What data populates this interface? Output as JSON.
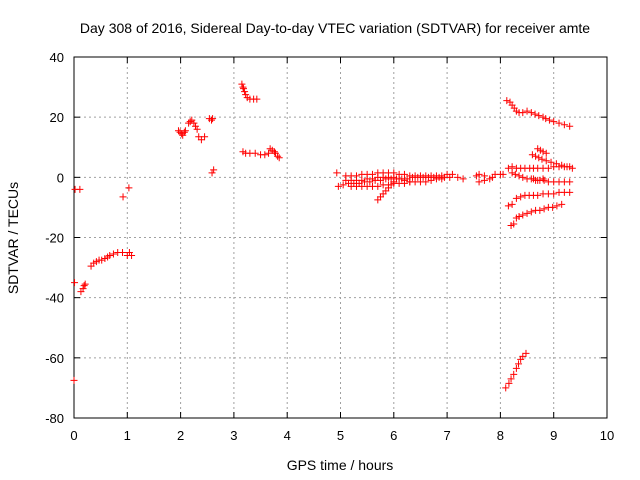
{
  "chart_data": {
    "type": "scatter",
    "title": "Day 308 of 2016, Sidereal Day-to-day VTEC variation (SDTVAR) for receiver amte",
    "xlabel": "GPS time / hours",
    "ylabel": "SDTVAR / TECUs",
    "xlim": [
      0,
      10
    ],
    "ylim": [
      -80,
      40
    ],
    "xticks": [
      0,
      1,
      2,
      3,
      4,
      5,
      6,
      7,
      8,
      9,
      10
    ],
    "yticks": [
      -80,
      -60,
      -40,
      -20,
      0,
      20,
      40
    ],
    "xtick_labels": [
      "0",
      "1",
      "2",
      "3",
      "4",
      "5",
      "6",
      "7",
      "8",
      "9",
      "10"
    ],
    "ytick_labels": [
      "-80",
      "-60",
      "-40",
      "-20",
      "0",
      "20",
      "40"
    ],
    "grid": true,
    "marker": "plus",
    "color": "#ff0000",
    "series": [
      {
        "name": "SDTVAR",
        "points": [
          [
            0.0,
            -67.5
          ],
          [
            0.01,
            -35
          ],
          [
            0.02,
            -4
          ],
          [
            0.11,
            -4
          ],
          [
            0.13,
            -38
          ],
          [
            0.17,
            -37
          ],
          [
            0.19,
            -36
          ],
          [
            0.21,
            -35.5
          ],
          [
            0.32,
            -29.5
          ],
          [
            0.37,
            -28.5
          ],
          [
            0.42,
            -28
          ],
          [
            0.47,
            -27.5
          ],
          [
            0.52,
            -27.5
          ],
          [
            0.58,
            -27
          ],
          [
            0.63,
            -26.5
          ],
          [
            0.67,
            -26
          ],
          [
            0.74,
            -25.5
          ],
          [
            0.82,
            -25
          ],
          [
            0.91,
            -25
          ],
          [
            0.92,
            -6.5
          ],
          [
            1.03,
            -3.5
          ],
          [
            1.0,
            -26
          ],
          [
            1.04,
            -25
          ],
          [
            1.08,
            -26
          ],
          [
            1.96,
            15.5
          ],
          [
            1.99,
            15
          ],
          [
            2.02,
            14.5
          ],
          [
            2.04,
            14
          ],
          [
            2.07,
            15
          ],
          [
            2.09,
            15.5
          ],
          [
            2.15,
            18
          ],
          [
            2.18,
            18.5
          ],
          [
            2.21,
            19
          ],
          [
            2.25,
            18
          ],
          [
            2.28,
            17
          ],
          [
            2.31,
            16
          ],
          [
            2.34,
            13.5
          ],
          [
            2.39,
            12.5
          ],
          [
            2.45,
            13.5
          ],
          [
            2.54,
            19.5
          ],
          [
            2.58,
            19
          ],
          [
            2.6,
            19.5
          ],
          [
            2.59,
            1.5
          ],
          [
            2.62,
            2.5
          ],
          [
            3.15,
            31
          ],
          [
            3.17,
            30
          ],
          [
            3.18,
            29.5
          ],
          [
            3.2,
            28.5
          ],
          [
            3.22,
            27.5
          ],
          [
            3.25,
            26.5
          ],
          [
            3.3,
            26
          ],
          [
            3.37,
            26
          ],
          [
            3.43,
            26
          ],
          [
            3.17,
            8.5
          ],
          [
            3.22,
            8
          ],
          [
            3.3,
            8
          ],
          [
            3.4,
            8
          ],
          [
            3.5,
            7.5
          ],
          [
            3.58,
            7.5
          ],
          [
            3.65,
            8
          ],
          [
            3.68,
            9.5
          ],
          [
            3.72,
            9
          ],
          [
            3.76,
            8.5
          ],
          [
            3.78,
            8
          ],
          [
            3.82,
            7
          ],
          [
            3.85,
            6.5
          ],
          [
            4.93,
            1.5
          ],
          [
            4.96,
            -3
          ],
          [
            5.1,
            0.5
          ],
          [
            5.2,
            0.5
          ],
          [
            5.3,
            0.5
          ],
          [
            5.4,
            1
          ],
          [
            5.5,
            1
          ],
          [
            5.6,
            1
          ],
          [
            5.7,
            1.5
          ],
          [
            5.8,
            1.5
          ],
          [
            5.9,
            1.5
          ],
          [
            6.0,
            1.5
          ],
          [
            6.1,
            1
          ],
          [
            6.2,
            1
          ],
          [
            6.3,
            0.5
          ],
          [
            6.4,
            0.5
          ],
          [
            6.5,
            0.5
          ],
          [
            6.6,
            0.5
          ],
          [
            6.7,
            0.5
          ],
          [
            6.8,
            0.5
          ],
          [
            6.9,
            0.5
          ],
          [
            7.0,
            1
          ],
          [
            7.1,
            1
          ],
          [
            5.05,
            -2.5
          ],
          [
            5.15,
            -2
          ],
          [
            5.25,
            -2
          ],
          [
            5.35,
            -2
          ],
          [
            5.45,
            -1.5
          ],
          [
            5.55,
            -1.5
          ],
          [
            5.65,
            -1
          ],
          [
            5.75,
            -1
          ],
          [
            5.85,
            -0.5
          ],
          [
            5.95,
            -0.5
          ],
          [
            6.05,
            -0.5
          ],
          [
            6.15,
            -0.5
          ],
          [
            6.25,
            -0.5
          ],
          [
            6.35,
            0
          ],
          [
            6.45,
            0
          ],
          [
            6.55,
            0
          ],
          [
            6.65,
            0
          ],
          [
            6.75,
            0
          ],
          [
            6.85,
            0
          ],
          [
            6.95,
            0
          ],
          [
            7.05,
            0
          ],
          [
            5.1,
            -1
          ],
          [
            5.2,
            -1
          ],
          [
            5.3,
            -1
          ],
          [
            5.4,
            -1
          ],
          [
            5.5,
            -0.5
          ],
          [
            5.6,
            -0.5
          ],
          [
            5.7,
            0
          ],
          [
            5.8,
            0
          ],
          [
            5.9,
            0
          ],
          [
            6.0,
            0
          ],
          [
            6.1,
            -0.5
          ],
          [
            6.2,
            -1
          ],
          [
            6.3,
            -1.5
          ],
          [
            6.4,
            -1.5
          ],
          [
            6.5,
            -1.5
          ],
          [
            6.6,
            -1.5
          ],
          [
            6.7,
            -1
          ],
          [
            6.8,
            -0.5
          ],
          [
            6.9,
            -0.5
          ],
          [
            5.2,
            -3
          ],
          [
            5.3,
            -3
          ],
          [
            5.4,
            -3
          ],
          [
            5.5,
            -3
          ],
          [
            5.6,
            -3
          ],
          [
            5.7,
            -3
          ],
          [
            5.8,
            -2.5
          ],
          [
            5.9,
            -2.5
          ],
          [
            6.0,
            -2
          ],
          [
            6.1,
            -2
          ],
          [
            6.2,
            -2
          ],
          [
            6.3,
            -1.5
          ],
          [
            5.7,
            -7.5
          ],
          [
            5.75,
            -6.5
          ],
          [
            5.8,
            -5.5
          ],
          [
            5.85,
            -4.5
          ],
          [
            5.9,
            -3.5
          ],
          [
            5.95,
            -2.5
          ],
          [
            6.0,
            -1.5
          ],
          [
            7.2,
            0
          ],
          [
            7.3,
            -0.5
          ],
          [
            7.55,
            0.5
          ],
          [
            7.6,
            1
          ],
          [
            7.7,
            0.5
          ],
          [
            7.85,
            0
          ],
          [
            7.9,
            1
          ],
          [
            8.0,
            1
          ],
          [
            8.05,
            1
          ],
          [
            7.6,
            -1.5
          ],
          [
            7.7,
            -1
          ],
          [
            7.8,
            -0.5
          ],
          [
            8.12,
            25.5
          ],
          [
            8.18,
            25
          ],
          [
            8.22,
            24
          ],
          [
            8.26,
            23
          ],
          [
            8.3,
            22
          ],
          [
            8.35,
            21.5
          ],
          [
            8.42,
            21.5
          ],
          [
            8.5,
            22
          ],
          [
            8.58,
            21.5
          ],
          [
            8.65,
            21
          ],
          [
            8.72,
            20.5
          ],
          [
            8.8,
            20
          ],
          [
            8.85,
            19.5
          ],
          [
            8.92,
            19
          ],
          [
            9.0,
            18.5
          ],
          [
            9.1,
            18
          ],
          [
            9.2,
            17.5
          ],
          [
            9.3,
            17
          ],
          [
            8.15,
            3
          ],
          [
            8.22,
            3.5
          ],
          [
            8.3,
            3
          ],
          [
            8.38,
            3
          ],
          [
            8.46,
            3
          ],
          [
            8.55,
            3
          ],
          [
            8.62,
            3
          ],
          [
            8.7,
            3
          ],
          [
            8.8,
            3
          ],
          [
            8.9,
            3
          ],
          [
            9.0,
            3.5
          ],
          [
            9.1,
            3.5
          ],
          [
            9.2,
            3.5
          ],
          [
            9.3,
            3.5
          ],
          [
            8.2,
            -16
          ],
          [
            8.25,
            -15.5
          ],
          [
            8.3,
            -13.5
          ],
          [
            8.35,
            -13
          ],
          [
            8.42,
            -12.5
          ],
          [
            8.5,
            -12
          ],
          [
            8.58,
            -11.5
          ],
          [
            8.66,
            -11
          ],
          [
            8.74,
            -11
          ],
          [
            8.82,
            -10.5
          ],
          [
            8.9,
            -10
          ],
          [
            8.98,
            -10
          ],
          [
            9.06,
            -9.5
          ],
          [
            9.15,
            -9
          ],
          [
            8.15,
            -9.5
          ],
          [
            8.22,
            -9
          ],
          [
            8.3,
            -7
          ],
          [
            8.38,
            -6.5
          ],
          [
            8.46,
            -6
          ],
          [
            8.54,
            -6
          ],
          [
            8.62,
            -6
          ],
          [
            8.7,
            -6
          ],
          [
            8.8,
            -5.5
          ],
          [
            8.9,
            -5.5
          ],
          [
            9.0,
            -5.5
          ],
          [
            9.1,
            -5
          ],
          [
            9.2,
            -5
          ],
          [
            9.3,
            -5
          ],
          [
            8.22,
            1.5
          ],
          [
            8.28,
            1
          ],
          [
            8.35,
            0.5
          ],
          [
            8.42,
            0
          ],
          [
            8.5,
            -0.5
          ],
          [
            8.58,
            -0.5
          ],
          [
            8.66,
            -1
          ],
          [
            8.74,
            -1
          ],
          [
            8.82,
            -1
          ],
          [
            8.9,
            -1.5
          ],
          [
            9.0,
            -1.5
          ],
          [
            9.1,
            -1.5
          ],
          [
            9.2,
            -1.5
          ],
          [
            9.3,
            -1.5
          ],
          [
            8.6,
            7.5
          ],
          [
            8.66,
            7
          ],
          [
            8.72,
            6.5
          ],
          [
            8.78,
            6
          ],
          [
            8.86,
            5.5
          ],
          [
            8.95,
            5
          ],
          [
            9.05,
            4.5
          ],
          [
            9.15,
            4
          ],
          [
            9.25,
            3.5
          ],
          [
            9.35,
            3
          ],
          [
            8.7,
            9.5
          ],
          [
            8.75,
            9
          ],
          [
            8.8,
            8.5
          ],
          [
            8.86,
            8
          ],
          [
            8.62,
            -0.5
          ],
          [
            8.7,
            -1
          ],
          [
            8.8,
            -0.5
          ],
          [
            8.1,
            -70
          ],
          [
            8.16,
            -68.5
          ],
          [
            8.2,
            -67
          ],
          [
            8.25,
            -65.5
          ],
          [
            8.3,
            -63.5
          ],
          [
            8.34,
            -62
          ],
          [
            8.38,
            -60.5
          ],
          [
            8.42,
            -59.5
          ],
          [
            8.48,
            -58.5
          ]
        ]
      }
    ]
  }
}
